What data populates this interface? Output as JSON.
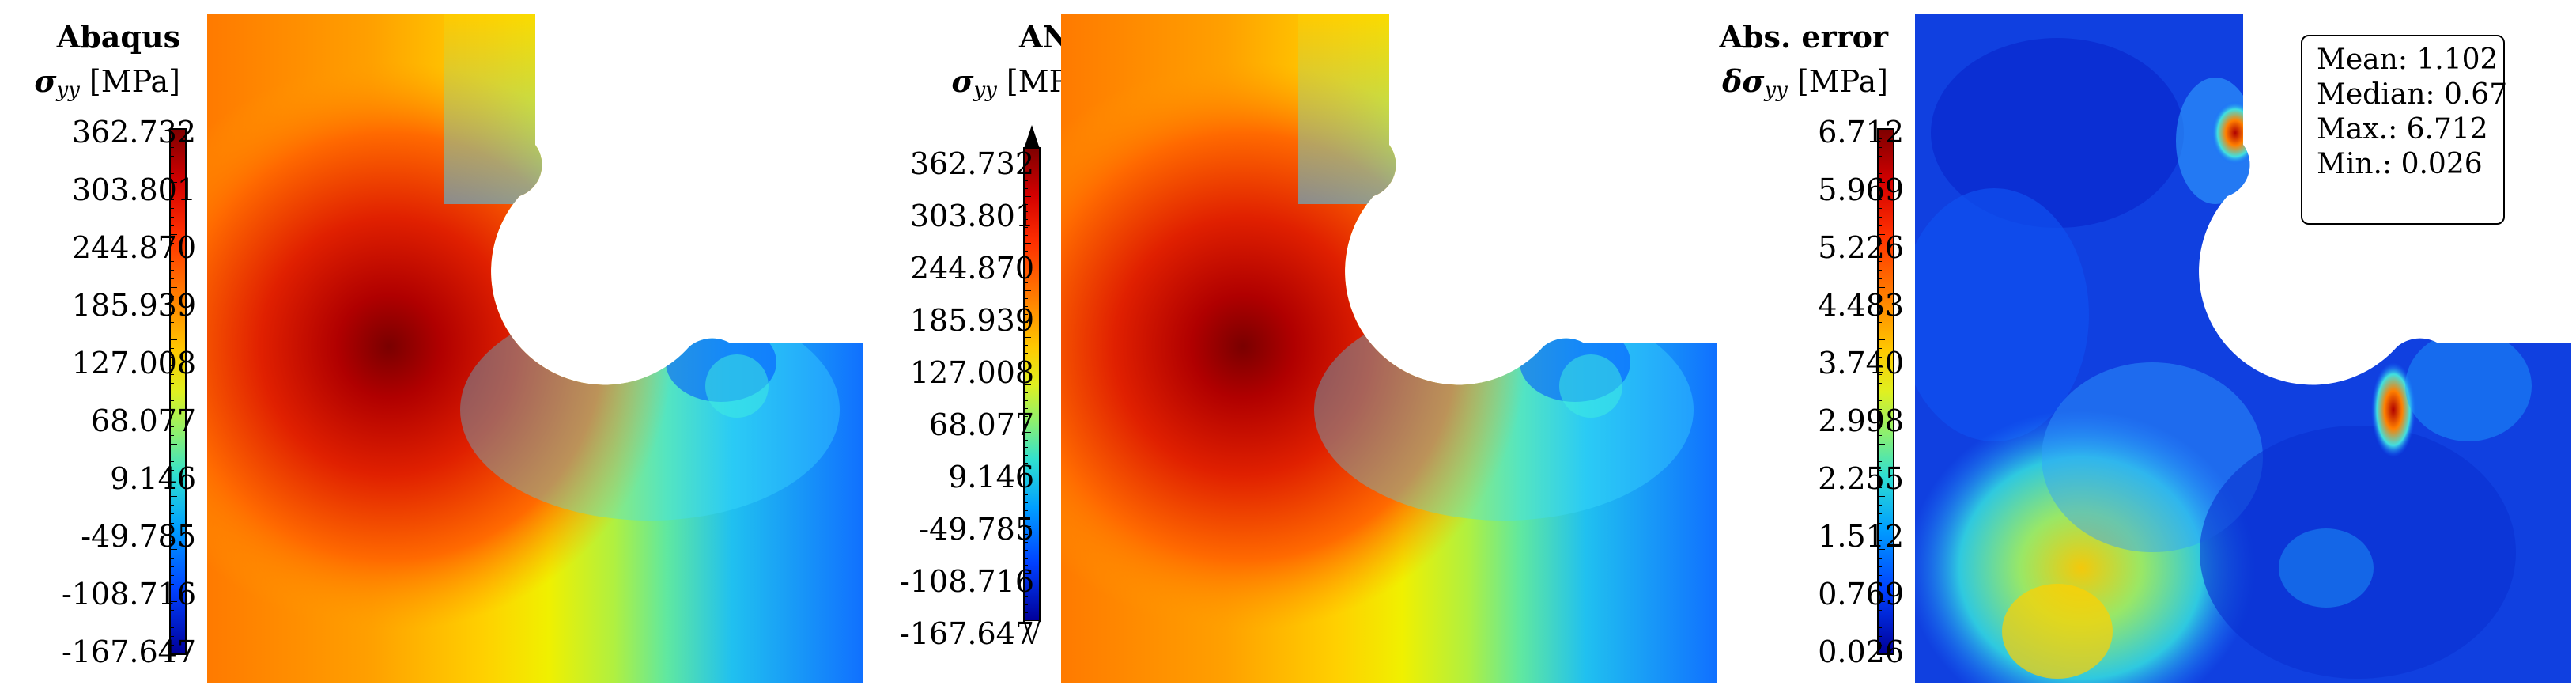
{
  "panels": [
    {
      "title": "Abaqus",
      "quantity_symbol": "σ",
      "quantity_subscript": "yy",
      "quantity_unit": "[MPa]",
      "colorbar_ticks": [
        "362.732",
        "303.801",
        "244.870",
        "185.939",
        "127.008",
        "68.077",
        "9.146",
        "-49.785",
        "-108.716",
        "-167.647"
      ],
      "colormap": "jet"
    },
    {
      "title": "ANN",
      "quantity_symbol": "σ",
      "quantity_subscript": "yy",
      "quantity_unit": "[MPa]",
      "colorbar_ticks": [
        "362.732",
        "303.801",
        "244.870",
        "185.939",
        "127.008",
        "68.077",
        "9.146",
        "-49.785",
        "-108.716",
        "-167.647"
      ],
      "colormap": "jet",
      "colorbar_extend_arrows": true
    },
    {
      "title": "Abs. error",
      "quantity_symbol": "δσ",
      "quantity_subscript": "yy",
      "quantity_unit": "[MPa]",
      "colorbar_ticks": [
        "6.712",
        "5.969",
        "5.226",
        "4.483",
        "3.740",
        "2.998",
        "2.255",
        "1.512",
        "0.769",
        "0.026"
      ],
      "colormap": "jet",
      "stats": {
        "mean_label": "Mean: 1.102",
        "median_label": "Median: 0.67",
        "max_label": "Max.: 6.712",
        "min_label": "Min.: 0.026"
      }
    }
  ]
}
